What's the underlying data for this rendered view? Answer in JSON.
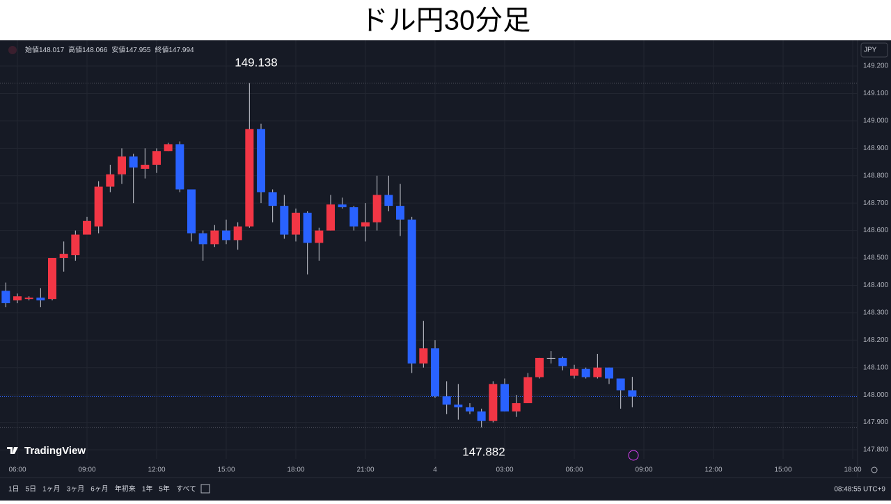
{
  "chart_data": {
    "type": "candlestick",
    "title": "ドル円30分足",
    "x": [
      5.5,
      6,
      6.5,
      7,
      7.5,
      8,
      8.5,
      9,
      9.5,
      10,
      10.5,
      11,
      11.5,
      12,
      12.5,
      13,
      13.5,
      14,
      14.5,
      15,
      15.5,
      16,
      16.5,
      17,
      17.5,
      18,
      18.5,
      19,
      19.5,
      20,
      20.5,
      21,
      21.5,
      22,
      22.5,
      23,
      23.5,
      24,
      24.5,
      25,
      25.5,
      26,
      26.5,
      27,
      27.5,
      28,
      28.5,
      29,
      29.5,
      30,
      30.5,
      31,
      31.5,
      32,
      32.5
    ],
    "open": [
      148.38,
      148.345,
      148.35,
      148.355,
      148.35,
      148.5,
      148.51,
      148.585,
      148.615,
      148.76,
      148.805,
      148.87,
      148.825,
      148.84,
      148.89,
      148.915,
      148.75,
      148.59,
      148.55,
      148.6,
      148.565,
      148.615,
      148.97,
      148.74,
      148.69,
      148.585,
      148.665,
      148.555,
      148.6,
      148.695,
      148.685,
      148.615,
      148.63,
      148.73,
      148.69,
      148.64,
      148.115,
      148.17,
      147.995,
      147.965,
      147.955,
      147.94,
      147.905,
      148.04,
      147.94,
      147.97,
      148.065,
      148.135,
      148.135,
      148.07,
      148.095,
      148.065,
      148.1,
      148.06,
      148.017
    ],
    "high": [
      148.41,
      148.37,
      148.36,
      148.39,
      148.5,
      148.56,
      148.6,
      148.65,
      148.78,
      148.84,
      148.9,
      148.88,
      148.9,
      148.9,
      148.92,
      148.925,
      148.75,
      148.6,
      148.62,
      148.64,
      148.63,
      149.138,
      148.99,
      148.75,
      148.73,
      148.68,
      148.67,
      148.61,
      148.73,
      148.72,
      148.69,
      148.7,
      148.8,
      148.8,
      148.77,
      148.65,
      148.27,
      148.2,
      148.05,
      148.04,
      147.97,
      147.95,
      148.05,
      148.06,
      148.0,
      148.08,
      148.135,
      148.16,
      148.14,
      148.11,
      148.1,
      148.15,
      148.1,
      148.06,
      148.066
    ],
    "low": [
      148.32,
      148.335,
      148.345,
      148.32,
      148.345,
      148.45,
      148.49,
      148.585,
      148.59,
      148.74,
      148.77,
      148.7,
      148.79,
      148.81,
      148.89,
      148.74,
      148.56,
      148.49,
      148.54,
      148.55,
      148.53,
      148.61,
      148.7,
      148.63,
      148.57,
      148.56,
      148.44,
      148.49,
      148.6,
      148.68,
      148.6,
      148.56,
      148.6,
      148.67,
      148.58,
      148.08,
      148.1,
      147.99,
      147.93,
      147.91,
      147.93,
      147.882,
      147.9,
      147.94,
      147.92,
      147.97,
      148.06,
      148.115,
      148.09,
      148.06,
      148.06,
      148.06,
      148.04,
      147.95,
      147.955
    ],
    "close": [
      148.335,
      148.36,
      148.355,
      148.345,
      148.5,
      148.515,
      148.585,
      148.635,
      148.76,
      148.805,
      148.87,
      148.83,
      148.84,
      148.89,
      148.915,
      148.75,
      148.59,
      148.55,
      148.6,
      148.565,
      148.615,
      148.97,
      148.74,
      148.69,
      148.585,
      148.665,
      148.555,
      148.6,
      148.695,
      148.685,
      148.615,
      148.63,
      148.73,
      148.69,
      148.64,
      148.115,
      148.17,
      147.995,
      147.965,
      147.955,
      147.94,
      147.905,
      148.04,
      147.94,
      147.97,
      148.065,
      148.135,
      148.135,
      148.105,
      148.095,
      148.065,
      148.1,
      148.06,
      148.017,
      147.994
    ],
    "up_color": "#f23645",
    "down_color": "#2962ff",
    "wick_color": "#c8cbd3",
    "xlim": [
      5.25,
      42.21
    ],
    "xticks": [
      {
        "value": 6,
        "label": "06:00"
      },
      {
        "value": 9,
        "label": "09:00"
      },
      {
        "value": 12,
        "label": "12:00"
      },
      {
        "value": 15,
        "label": "15:00"
      },
      {
        "value": 18,
        "label": "18:00"
      },
      {
        "value": 21,
        "label": "21:00"
      },
      {
        "value": 24,
        "label": "4"
      },
      {
        "value": 27,
        "label": "03:00"
      },
      {
        "value": 30,
        "label": "06:00"
      },
      {
        "value": 33,
        "label": "09:00"
      },
      {
        "value": 36,
        "label": "12:00"
      },
      {
        "value": 39,
        "label": "15:00"
      },
      {
        "value": 42,
        "label": "18:00"
      }
    ],
    "ylim": [
      147.767,
      149.294
    ],
    "yticks": [
      {
        "value": 147.8,
        "label": "147.800"
      },
      {
        "value": 147.9,
        "label": "147.900"
      },
      {
        "value": 148.0,
        "label": "148.000"
      },
      {
        "value": 148.1,
        "label": "148.100"
      },
      {
        "value": 148.2,
        "label": "148.200"
      },
      {
        "value": 148.3,
        "label": "148.300"
      },
      {
        "value": 148.4,
        "label": "148.400"
      },
      {
        "value": 148.5,
        "label": "148.500"
      },
      {
        "value": 148.6,
        "label": "148.600"
      },
      {
        "value": 148.7,
        "label": "148.700"
      },
      {
        "value": 148.8,
        "label": "148.800"
      },
      {
        "value": 148.9,
        "label": "148.900"
      },
      {
        "value": 149.0,
        "label": "149.000"
      },
      {
        "value": 149.1,
        "label": "149.100"
      },
      {
        "value": 149.2,
        "label": "149.200"
      }
    ],
    "grid": true,
    "annotations": [
      "149.138",
      "147.882"
    ]
  },
  "ui": {
    "ohlc": [
      {
        "label": "始値",
        "value": 148.017
      },
      {
        "label": "高値",
        "value": 148.066
      },
      {
        "label": "安値",
        "value": 147.955
      },
      {
        "label": "終値",
        "value": 147.994
      }
    ],
    "currency": "JPY",
    "logo": "TradingView",
    "ranges": [
      "1日",
      "5日",
      "1ヶ月",
      "3ヶ月",
      "6ヶ月",
      "年初来",
      "1年",
      "5年",
      "すべて"
    ],
    "clock": "08:48:55 UTC+9"
  }
}
